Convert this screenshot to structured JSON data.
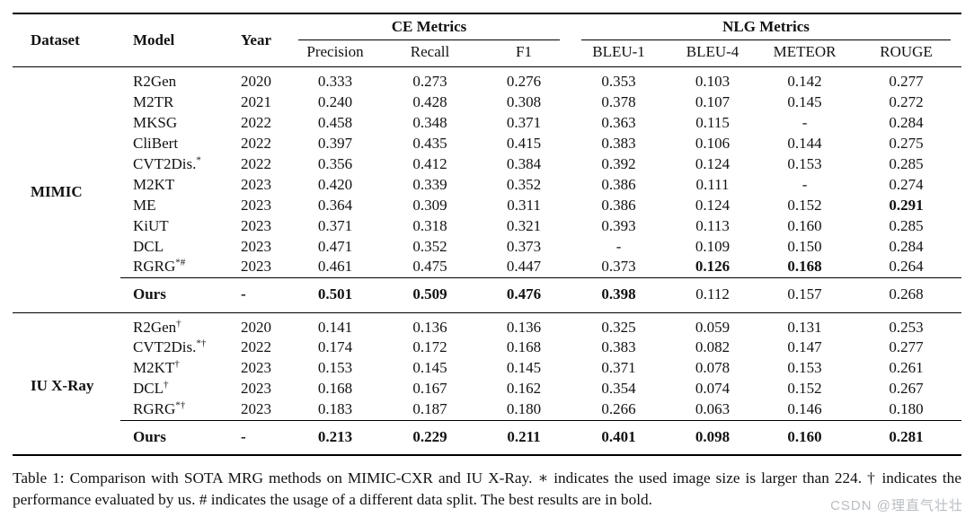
{
  "table": {
    "header": {
      "dataset": "Dataset",
      "model": "Model",
      "year": "Year",
      "groups": [
        {
          "label": "CE Metrics"
        },
        {
          "label": "NLG Metrics"
        }
      ],
      "metrics": [
        "Precision",
        "Recall",
        "F1",
        "BLEU-1",
        "BLEU-4",
        "METEOR",
        "ROUGE"
      ]
    },
    "sections": [
      {
        "dataset": "MIMIC",
        "rows": [
          {
            "model": "R2Gen",
            "sup": "",
            "year": "2020",
            "values": [
              "0.333",
              "0.273",
              "0.276",
              "0.353",
              "0.103",
              "0.142",
              "0.277"
            ],
            "bold": []
          },
          {
            "model": "M2TR",
            "sup": "",
            "year": "2021",
            "values": [
              "0.240",
              "0.428",
              "0.308",
              "0.378",
              "0.107",
              "0.145",
              "0.272"
            ],
            "bold": []
          },
          {
            "model": "MKSG",
            "sup": "",
            "year": "2022",
            "values": [
              "0.458",
              "0.348",
              "0.371",
              "0.363",
              "0.115",
              "-",
              "0.284"
            ],
            "bold": []
          },
          {
            "model": "CliBert",
            "sup": "",
            "year": "2022",
            "values": [
              "0.397",
              "0.435",
              "0.415",
              "0.383",
              "0.106",
              "0.144",
              "0.275"
            ],
            "bold": []
          },
          {
            "model": "CVT2Dis.",
            "sup": "*",
            "year": "2022",
            "values": [
              "0.356",
              "0.412",
              "0.384",
              "0.392",
              "0.124",
              "0.153",
              "0.285"
            ],
            "bold": []
          },
          {
            "model": "M2KT",
            "sup": "",
            "year": "2023",
            "values": [
              "0.420",
              "0.339",
              "0.352",
              "0.386",
              "0.111",
              "-",
              "0.274"
            ],
            "bold": []
          },
          {
            "model": "ME",
            "sup": "",
            "year": "2023",
            "values": [
              "0.364",
              "0.309",
              "0.311",
              "0.386",
              "0.124",
              "0.152",
              "0.291"
            ],
            "bold": [
              6
            ]
          },
          {
            "model": "KiUT",
            "sup": "",
            "year": "2023",
            "values": [
              "0.371",
              "0.318",
              "0.321",
              "0.393",
              "0.113",
              "0.160",
              "0.285"
            ],
            "bold": []
          },
          {
            "model": "DCL",
            "sup": "",
            "year": "2023",
            "values": [
              "0.471",
              "0.352",
              "0.373",
              "-",
              "0.109",
              "0.150",
              "0.284"
            ],
            "bold": []
          },
          {
            "model": "RGRG",
            "sup": "*#",
            "year": "2023",
            "values": [
              "0.461",
              "0.475",
              "0.447",
              "0.373",
              "0.126",
              "0.168",
              "0.264"
            ],
            "bold": [
              4,
              5
            ]
          },
          {
            "model": "Ours",
            "sup": "",
            "year": "-",
            "values": [
              "0.501",
              "0.509",
              "0.476",
              "0.398",
              "0.112",
              "0.157",
              "0.268"
            ],
            "bold": [
              0,
              1,
              2,
              3
            ],
            "model_bold": true,
            "ours": true
          }
        ]
      },
      {
        "dataset": "IU X-Ray",
        "rows": [
          {
            "model": "R2Gen",
            "sup": "†",
            "year": "2020",
            "values": [
              "0.141",
              "0.136",
              "0.136",
              "0.325",
              "0.059",
              "0.131",
              "0.253"
            ],
            "bold": []
          },
          {
            "model": "CVT2Dis.",
            "sup": "*†",
            "year": "2022",
            "values": [
              "0.174",
              "0.172",
              "0.168",
              "0.383",
              "0.082",
              "0.147",
              "0.277"
            ],
            "bold": []
          },
          {
            "model": "M2KT",
            "sup": "†",
            "year": "2023",
            "values": [
              "0.153",
              "0.145",
              "0.145",
              "0.371",
              "0.078",
              "0.153",
              "0.261"
            ],
            "bold": []
          },
          {
            "model": "DCL",
            "sup": "†",
            "year": "2023",
            "values": [
              "0.168",
              "0.167",
              "0.162",
              "0.354",
              "0.074",
              "0.152",
              "0.267"
            ],
            "bold": []
          },
          {
            "model": "RGRG",
            "sup": "*†",
            "year": "2023",
            "values": [
              "0.183",
              "0.187",
              "0.180",
              "0.266",
              "0.063",
              "0.146",
              "0.180"
            ],
            "bold": []
          },
          {
            "model": "Ours",
            "sup": "",
            "year": "-",
            "values": [
              "0.213",
              "0.229",
              "0.211",
              "0.401",
              "0.098",
              "0.160",
              "0.281"
            ],
            "bold": [
              0,
              1,
              2,
              3,
              4,
              5,
              6
            ],
            "model_bold": true,
            "ours": true
          }
        ]
      }
    ]
  },
  "caption": "Table 1: Comparison with SOTA MRG methods on MIMIC-CXR and IU X-Ray. ∗ indicates the used image size is larger than 224. † indicates the performance evaluated by us. # indicates the usage of a different data split. The best results are in bold.",
  "watermark": "CSDN @理直气壮壮"
}
